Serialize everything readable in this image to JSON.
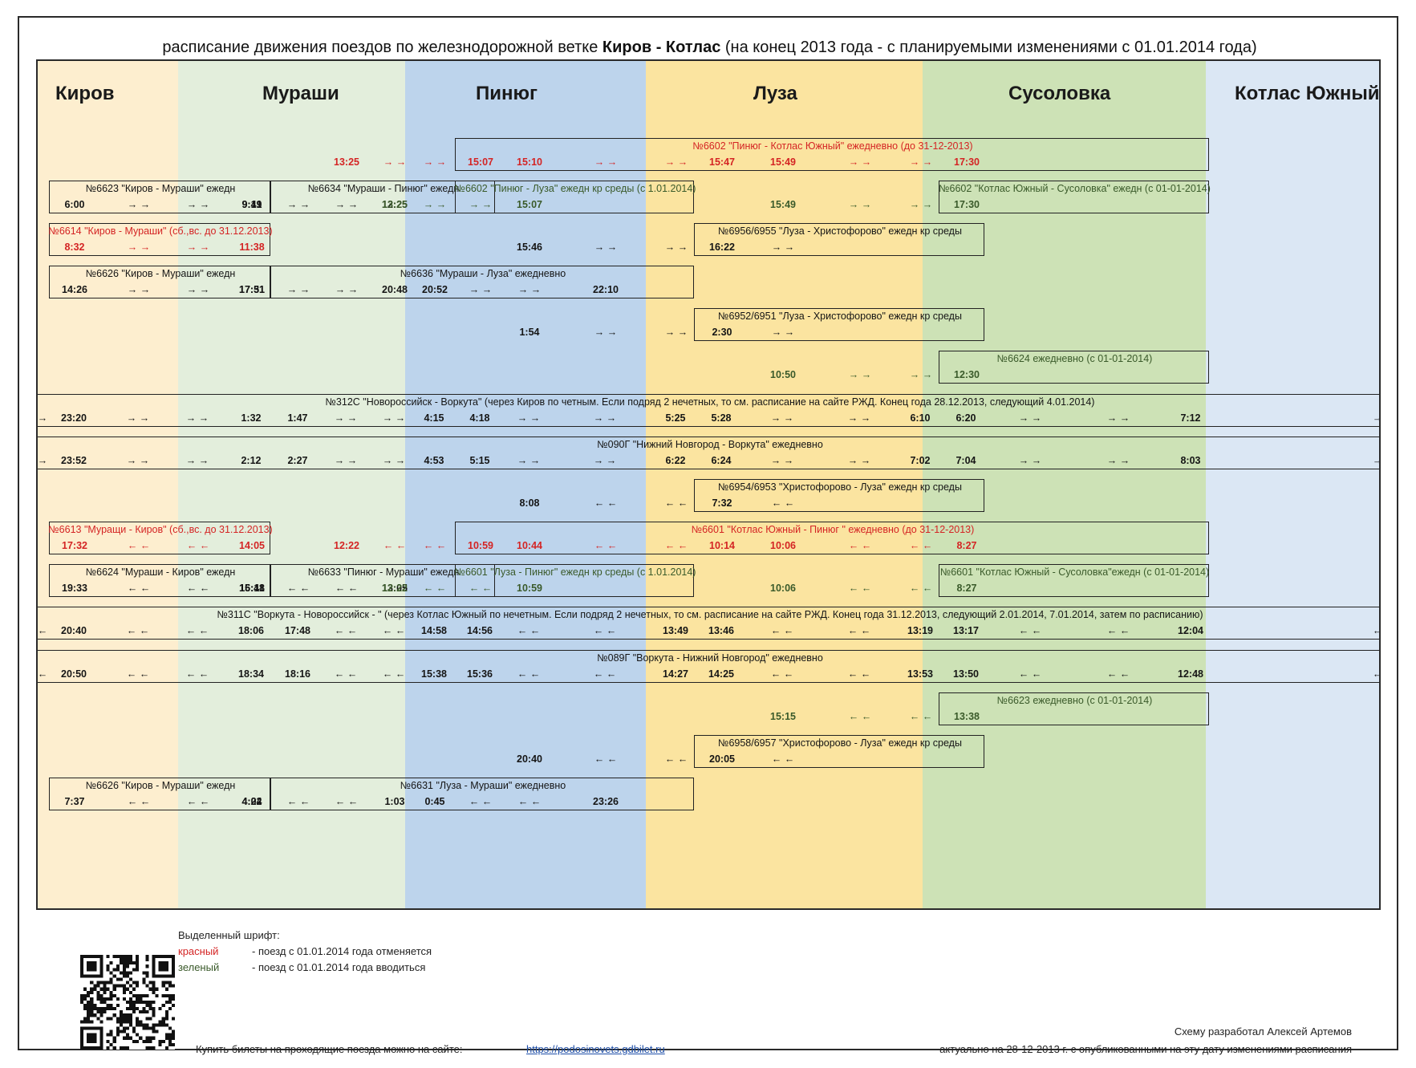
{
  "title": {
    "prefix": "расписание движения поездов по железнодорожной ветке ",
    "bold": "Киров - Котлас",
    "suffix": " (на конец 2013 года - с планируемыми изменениями с 01.01.2014 года)"
  },
  "colors": {
    "band_kirov": "#fdeecf",
    "band_murashi": "#e3eedc",
    "band_pinyug": "#bdd4ec",
    "band_luza": "#fbe4a0",
    "band_susolovka": "#cde2b6",
    "band_kotlas": "#dbe7f4",
    "red": "#d42424",
    "green": "#3a5a2a"
  },
  "stations": [
    "Киров",
    "Мураши",
    "Пинюг",
    "Луза",
    "Сусоловка",
    "Котлас Южный"
  ],
  "trains": [
    {
      "row": 0,
      "span": [
        5,
        12
      ],
      "color": "red",
      "label": "№6602 \"Пинюг - Котлас Южный\" ежедневно (до 31-12-2013)",
      "cells": {
        "5": "13:25",
        "6": "→ →",
        "7": "→ →",
        "8": "15:07",
        "9": "15:10",
        "10": "→ →",
        "11": "→ →",
        "12": "15:47",
        "13": "15:49",
        "14": "→ →",
        "15": "→ →",
        "16": "17:30"
      }
    },
    {
      "row": 1,
      "span": [
        0,
        2
      ],
      "color": "black",
      "label": "№6623 \"Киров - Мураши\" ежедн",
      "cells": {
        "0": "6:00",
        "1": "→ →",
        "2": "→ →",
        "3": "9:19"
      }
    },
    {
      "row": 1,
      "span": [
        3,
        4
      ],
      "color": "black",
      "label": "№6634 \"Мураши - Пинюг\" ежедн",
      "cells": {
        "3": "9:41",
        "4": "→ →",
        "5": "→ →",
        "6": "12:25"
      }
    },
    {
      "row": 1,
      "span": [
        5,
        6
      ],
      "color": "green",
      "label": "№6602 \"Пинюг - Луза\" ежедн кр среды (с 1.01.2014)",
      "cells": {
        "6": "13:25",
        "7": "→ →",
        "8": "→ →",
        "9": "15:07"
      }
    },
    {
      "row": 1,
      "span": [
        11,
        12
      ],
      "color": "green",
      "label": "№6602 \"Котлас Южный - Сусоловка\" ежедн  (с 01-01-2014)",
      "cells": {
        "13": "15:49",
        "14": "→ →",
        "15": "→ →",
        "16": "17:30"
      }
    },
    {
      "row": 2,
      "span": [
        0,
        2
      ],
      "color": "red",
      "label": "№6614 \"Киров - Мураши\" (сб.,вс.  до 31.12.2013)",
      "cells": {
        "0": "8:32",
        "1": "→ →",
        "2": "→ →",
        "3": "11:38"
      }
    },
    {
      "row": 2,
      "span": [
        7,
        8
      ],
      "color": "black",
      "label": "№6956/6955 \"Луза - Христофорово\" ежедн кр среды",
      "cells": {
        "9": "15:46",
        "10": "→ →",
        "11": "→ →",
        "12": "16:22",
        "13": "→ →"
      }
    },
    {
      "row": 3,
      "span": [
        0,
        2
      ],
      "color": "black",
      "label": "№6626 \"Киров - Мураши\" ежедн",
      "cells": {
        "0": "14:26",
        "1": "→ →",
        "2": "→ →",
        "3": "17:31"
      }
    },
    {
      "row": 3,
      "span": [
        3,
        6
      ],
      "color": "black",
      "label": "№6636 \"Мураши - Луза\" ежедневно",
      "cells": {
        "3": "17:51",
        "4": "→ →",
        "5": "→ →",
        "6": "20:48",
        "7": "20:52",
        "8": "→ →",
        "9": "→ →",
        "10": "22:10"
      }
    },
    {
      "row": 4,
      "span": [
        7,
        8
      ],
      "color": "black",
      "label": "№6952/6951 \"Луза - Христофорово\" ежедн кр среды",
      "cells": {
        "9": "1:54",
        "10": "→ →",
        "11": "→ →",
        "12": "2:30",
        "13": "→ →"
      }
    },
    {
      "row": 5,
      "span": [
        11,
        12
      ],
      "color": "green",
      "label": "№6624 ежедневно (с 01-01-2014)",
      "cells": {
        "13": "10:50",
        "14": "→ →",
        "15": "→ →",
        "16": "12:30"
      }
    },
    {
      "row": 6,
      "span": [
        -1,
        13
      ],
      "color": "black",
      "label": "№312С \"Новороссийск - Воркута\" (через Киров по четным. Если подряд 2 нечетных, то см. расписание на сайте РЖД. Конец года 28.12.2013, следующий 4.01.2014)",
      "cells": {
        "e0": "→",
        "0": "23:20",
        "1": "→ →",
        "2": "→ →",
        "3": "1:32",
        "4": "1:47",
        "5": "→ →",
        "6": "→ →",
        "7": "4:15",
        "8": "4:18",
        "9": "→ →",
        "10": "→ →",
        "11": "5:25",
        "12": "5:28",
        "13": "→ →",
        "14": "→ →",
        "15": "6:10",
        "16": "6:20",
        "17": "→ →",
        "18": "→ →",
        "19": "7:12",
        "e1": "→"
      }
    },
    {
      "row": 7,
      "span": [
        -1,
        13
      ],
      "color": "black",
      "label": "№090Г \"Нижний Новгород - Воркута\" ежедневно",
      "cells": {
        "e0": "→",
        "0": "23:52",
        "1": "→ →",
        "2": "→ →",
        "3": "2:12",
        "4": "2:27",
        "5": "→ →",
        "6": "→ →",
        "7": "4:53",
        "8": "5:15",
        "9": "→ →",
        "10": "→ →",
        "11": "6:22",
        "12": "6:24",
        "13": "→ →",
        "14": "→ →",
        "15": "7:02",
        "16": "7:04",
        "17": "→ →",
        "18": "→ →",
        "19": "8:03",
        "e1": "→"
      }
    },
    {
      "row": 8,
      "span": [
        7,
        8
      ],
      "color": "black",
      "label": "№6954/6953 \"Христофорово - Луза\" ежедн кр среды",
      "cells": {
        "9": "8:08",
        "10": "← ←",
        "11": "← ←",
        "12": "7:32",
        "13": "← ←"
      }
    },
    {
      "row": 9,
      "span": [
        0,
        2
      ],
      "color": "red",
      "label": "№6613 \"Муращи - Киров\" (сб.,вс.  до 31.12.2013)",
      "cells": {
        "0": "17:32",
        "1": "← ←",
        "2": "← ←",
        "3": "14:05"
      }
    },
    {
      "row": 9,
      "span": [
        5,
        12
      ],
      "color": "red",
      "label": "№6601 \"Котлас Южный - Пинюг \" ежедневно (до 31-12-2013)",
      "cells": {
        "5": "12:22",
        "6": "← ←",
        "7": "← ←",
        "8": "10:59",
        "9": "10:44",
        "10": "← ←",
        "11": "← ←",
        "12": "10:14",
        "13": "10:06",
        "14": "← ←",
        "15": "← ←",
        "16": "8:27"
      }
    },
    {
      "row": 10,
      "span": [
        0,
        2
      ],
      "color": "black",
      "label": "№6624 \"Мураши - Киров\" ежедн",
      "cells": {
        "0": "19:33",
        "1": "← ←",
        "2": "← ←",
        "3": "16:11"
      }
    },
    {
      "row": 10,
      "span": [
        3,
        4
      ],
      "color": "black",
      "label": "№6633 \"Пинюг - Мураши\" ежедн",
      "cells": {
        "3": "15:48",
        "4": "← ←",
        "5": "← ←",
        "6": "13:05"
      }
    },
    {
      "row": 10,
      "span": [
        5,
        6
      ],
      "color": "green",
      "label": "№6601 \"Луза - Пинюг\" ежедн кр среды  (с 1.01.2014)",
      "cells": {
        "6": "12:22",
        "7": "← ←",
        "8": "← ←",
        "9": "10:59"
      }
    },
    {
      "row": 10,
      "span": [
        11,
        12
      ],
      "color": "green",
      "label": "№6601 \"Котлас Южный - Сусоловка\"ежедн (с 01-01-2014)",
      "cells": {
        "13": "10:06",
        "14": "← ←",
        "15": "← ←",
        "16": "8:27"
      }
    },
    {
      "row": 11,
      "span": [
        -1,
        13
      ],
      "color": "black",
      "label": "№311С \"Воркута - Новороссийск - \" (через Котлас Южный по нечетным. Если подряд 2 нечетных, то см. расписание на сайте РЖД. Конец года 31.12.2013, следующий 2.01.2014, 7.01.2014, затем по расписанию)",
      "cells": {
        "e0": "←",
        "0": "20:40",
        "1": "← ←",
        "2": "← ←",
        "3": "18:06",
        "4": "17:48",
        "5": "← ←",
        "6": "← ←",
        "7": "14:58",
        "8": "14:56",
        "9": "← ←",
        "10": "← ←",
        "11": "13:49",
        "12": "13:46",
        "13": "← ←",
        "14": "← ←",
        "15": "13:19",
        "16": "13:17",
        "17": "← ←",
        "18": "← ←",
        "19": "12:04",
        "e1": "←"
      }
    },
    {
      "row": 12,
      "span": [
        -1,
        13
      ],
      "color": "black",
      "label": "№089Г \"Воркута - Нижний Новгород\" ежедневно",
      "cells": {
        "e0": "←",
        "0": "20:50",
        "1": "← ←",
        "2": "← ←",
        "3": "18:34",
        "4": "18:16",
        "5": "← ←",
        "6": "← ←",
        "7": "15:38",
        "8": "15:36",
        "9": "← ←",
        "10": "← ←",
        "11": "14:27",
        "12": "14:25",
        "13": "← ←",
        "14": "← ←",
        "15": "13:53",
        "16": "13:50",
        "17": "← ←",
        "18": "← ←",
        "19": "12:48",
        "e1": "←"
      }
    },
    {
      "row": 13,
      "span": [
        11,
        12
      ],
      "color": "green",
      "label": "№6623 ежедневно (с 01-01-2014)",
      "cells": {
        "13": "15:15",
        "14": "← ←",
        "15": "← ←",
        "16": "13:38"
      }
    },
    {
      "row": 14,
      "span": [
        7,
        8
      ],
      "color": "black",
      "label": "№6958/6957 \"Христофорово - Луза\" ежедн кр среды",
      "cells": {
        "9": "20:40",
        "10": "← ←",
        "11": "← ←",
        "12": "20:05",
        "13": "← ←"
      }
    },
    {
      "row": 15,
      "span": [
        0,
        2
      ],
      "color": "black",
      "label": "№6626 \"Киров - Мураши\" ежедн",
      "cells": {
        "0": "7:37",
        "1": "← ←",
        "2": "← ←",
        "3": "4:24"
      }
    },
    {
      "row": 15,
      "span": [
        3,
        6
      ],
      "color": "black",
      "label": "№6631 \"Луза - Мураши\" ежедневно",
      "cells": {
        "3": "4:02",
        "4": "← ←",
        "5": "← ←",
        "6": "1:03",
        "7": "0:45",
        "8": "← ←",
        "9": "← ←",
        "10": "23:26"
      }
    }
  ],
  "legend": {
    "heading": "Выделенный шрифт:",
    "red_word": "красный",
    "red_text": "- поезд с 01.01.2014 года отменяется",
    "green_word": "зеленый",
    "green_text": "- поезд с 01.01.2014 года вводиться"
  },
  "footer": {
    "buy_text": "Купить билеты на проходящие поезда можно на сайте:",
    "link": "https://podosinovets.gdbilet.ru",
    "author": "Схему разработал Алексей Артемов",
    "actual": "актуально на 28-12-2013 г. с опубликованными на эту дату изменениями расписания"
  }
}
